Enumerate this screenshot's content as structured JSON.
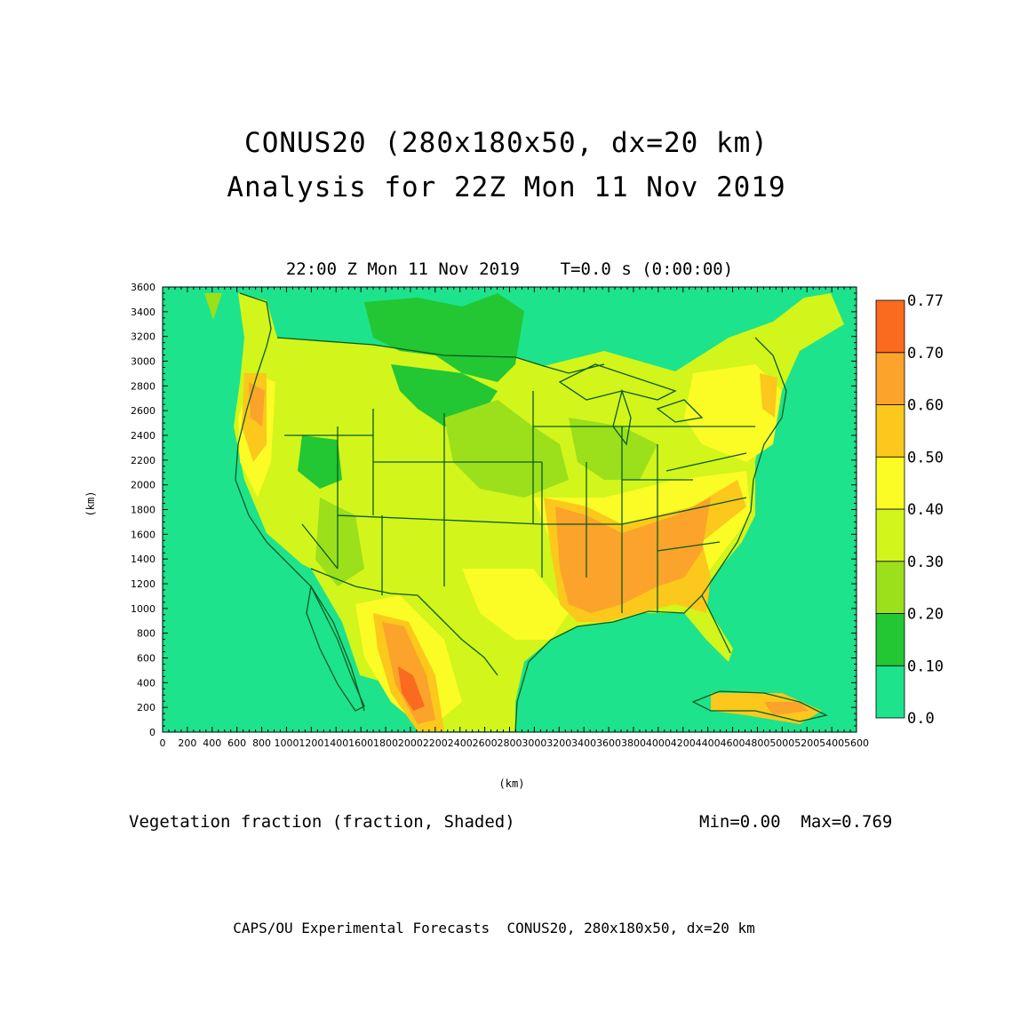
{
  "titles": {
    "line1": "CONUS20 (280x180x50, dx=20 km)",
    "line2": "Analysis for 22Z Mon 11 Nov 2019",
    "subtitle": "22:00 Z Mon 11 Nov 2019    T=0.0 s (0:00:00)"
  },
  "axes": {
    "xlabel": "(km)",
    "ylabel": "(km)",
    "x_ticks": [
      "0",
      "200",
      "400",
      "600",
      "800",
      "1000",
      "1200",
      "1400",
      "1600",
      "1800",
      "2000",
      "2200",
      "2400",
      "2600",
      "2800",
      "3000",
      "3200",
      "3400",
      "3600",
      "3800",
      "4000",
      "4200",
      "4400",
      "4600",
      "4800",
      "5000",
      "5200",
      "5400",
      "5600"
    ],
    "y_ticks": [
      "0",
      "200",
      "400",
      "600",
      "800",
      "1000",
      "1200",
      "1400",
      "1600",
      "1800",
      "2000",
      "2200",
      "2400",
      "2600",
      "2800",
      "3000",
      "3200",
      "3400",
      "3600"
    ],
    "xlim": [
      0,
      5600
    ],
    "ylim": [
      0,
      3600
    ]
  },
  "colorbar": {
    "levels": [
      "0.0",
      "0.10",
      "0.20",
      "0.30",
      "0.40",
      "0.50",
      "0.60",
      "0.70",
      "0.77"
    ],
    "colors": [
      "#1de38c",
      "#22c733",
      "#9be01b",
      "#d2f51b",
      "#fbfb25",
      "#fbc81b",
      "#fba32a",
      "#fb6b1f"
    ]
  },
  "variable_label": "Vegetation fraction (fraction, Shaded)",
  "min_max": "Min=0.00  Max=0.769",
  "footer": "CAPS/OU Experimental Forecasts  CONUS20, 280x180x50, dx=20 km"
}
